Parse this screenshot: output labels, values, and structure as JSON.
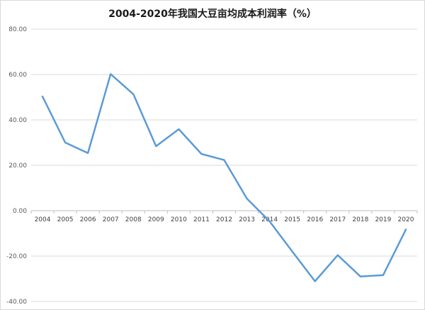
{
  "chart_data": {
    "type": "line",
    "title": "2004-2020年我国大豆亩均成本利润率（%）",
    "xlabel": "",
    "ylabel": "",
    "categories": [
      "2004",
      "2005",
      "2006",
      "2007",
      "2008",
      "2009",
      "2010",
      "2011",
      "2012",
      "2013",
      "2014",
      "2015",
      "2016",
      "2017",
      "2018",
      "2019",
      "2020"
    ],
    "series": [
      {
        "values": [
          50.3,
          30.0,
          25.4,
          60.2,
          51.3,
          28.4,
          35.9,
          25.0,
          22.3,
          5.3,
          -4.7,
          -18.0,
          -31.1,
          -19.6,
          -29.0,
          -28.4,
          -8.3
        ]
      }
    ],
    "ylim": [
      -40,
      80
    ],
    "yticks": [
      "80.00",
      "60.00",
      "40.00",
      "20.00",
      "0.00",
      "-20.00",
      "-40.00"
    ],
    "grid": "horizontal",
    "legend": "none",
    "colors": {
      "line": "#5b9bd5",
      "grid": "#d9d9d9",
      "axis": "#bfbfbf"
    }
  }
}
